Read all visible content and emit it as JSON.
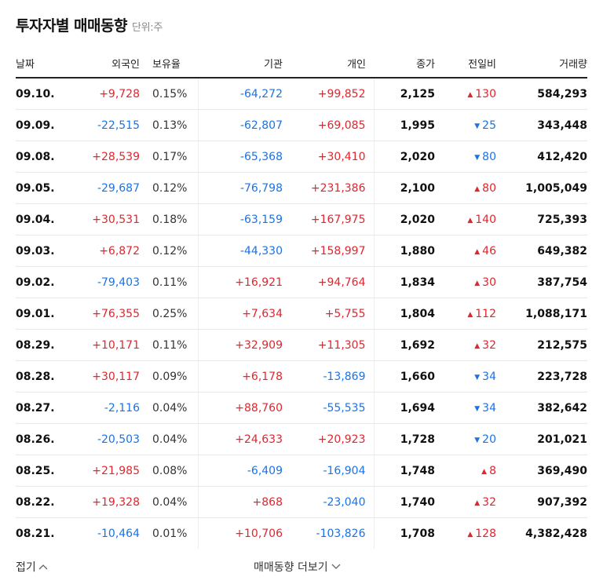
{
  "header": {
    "title": "투자자별 매매동향",
    "unit": "단위:주"
  },
  "columns": {
    "date": "날짜",
    "foreign": "외국인",
    "ratio": "보유율",
    "institution": "기관",
    "individual": "개인",
    "close": "종가",
    "change": "전일비",
    "volume": "거래량"
  },
  "colors": {
    "positive": "#e0262e",
    "negative": "#1a73e8"
  },
  "rows": [
    {
      "date": "09.10.",
      "foreign": "+9,728",
      "ratio": "0.15%",
      "institution": "-64,272",
      "individual": "+99,852",
      "close": "2,125",
      "dir": "up",
      "change": "130",
      "volume": "584,293"
    },
    {
      "date": "09.09.",
      "foreign": "-22,515",
      "ratio": "0.13%",
      "institution": "-62,807",
      "individual": "+69,085",
      "close": "1,995",
      "dir": "down",
      "change": "25",
      "volume": "343,448"
    },
    {
      "date": "09.08.",
      "foreign": "+28,539",
      "ratio": "0.17%",
      "institution": "-65,368",
      "individual": "+30,410",
      "close": "2,020",
      "dir": "down",
      "change": "80",
      "volume": "412,420"
    },
    {
      "date": "09.05.",
      "foreign": "-29,687",
      "ratio": "0.12%",
      "institution": "-76,798",
      "individual": "+231,386",
      "close": "2,100",
      "dir": "up",
      "change": "80",
      "volume": "1,005,049"
    },
    {
      "date": "09.04.",
      "foreign": "+30,531",
      "ratio": "0.18%",
      "institution": "-63,159",
      "individual": "+167,975",
      "close": "2,020",
      "dir": "up",
      "change": "140",
      "volume": "725,393"
    },
    {
      "date": "09.03.",
      "foreign": "+6,872",
      "ratio": "0.12%",
      "institution": "-44,330",
      "individual": "+158,997",
      "close": "1,880",
      "dir": "up",
      "change": "46",
      "volume": "649,382"
    },
    {
      "date": "09.02.",
      "foreign": "-79,403",
      "ratio": "0.11%",
      "institution": "+16,921",
      "individual": "+94,764",
      "close": "1,834",
      "dir": "up",
      "change": "30",
      "volume": "387,754"
    },
    {
      "date": "09.01.",
      "foreign": "+76,355",
      "ratio": "0.25%",
      "institution": "+7,634",
      "individual": "+5,755",
      "close": "1,804",
      "dir": "up",
      "change": "112",
      "volume": "1,088,171"
    },
    {
      "date": "08.29.",
      "foreign": "+10,171",
      "ratio": "0.11%",
      "institution": "+32,909",
      "individual": "+11,305",
      "close": "1,692",
      "dir": "up",
      "change": "32",
      "volume": "212,575"
    },
    {
      "date": "08.28.",
      "foreign": "+30,117",
      "ratio": "0.09%",
      "institution": "+6,178",
      "individual": "-13,869",
      "close": "1,660",
      "dir": "down",
      "change": "34",
      "volume": "223,728"
    },
    {
      "date": "08.27.",
      "foreign": "-2,116",
      "ratio": "0.04%",
      "institution": "+88,760",
      "individual": "-55,535",
      "close": "1,694",
      "dir": "down",
      "change": "34",
      "volume": "382,642"
    },
    {
      "date": "08.26.",
      "foreign": "-20,503",
      "ratio": "0.04%",
      "institution": "+24,633",
      "individual": "+20,923",
      "close": "1,728",
      "dir": "down",
      "change": "20",
      "volume": "201,021"
    },
    {
      "date": "08.25.",
      "foreign": "+21,985",
      "ratio": "0.08%",
      "institution": "-6,409",
      "individual": "-16,904",
      "close": "1,748",
      "dir": "up",
      "change": "8",
      "volume": "369,490"
    },
    {
      "date": "08.22.",
      "foreign": "+19,328",
      "ratio": "0.04%",
      "institution": "+868",
      "individual": "-23,040",
      "close": "1,740",
      "dir": "up",
      "change": "32",
      "volume": "907,392"
    },
    {
      "date": "08.21.",
      "foreign": "-10,464",
      "ratio": "0.01%",
      "institution": "+10,706",
      "individual": "-103,826",
      "close": "1,708",
      "dir": "up",
      "change": "128",
      "volume": "4,382,428"
    }
  ],
  "footer": {
    "fold_label": "접기",
    "more_label": "매매동향 더보기"
  }
}
